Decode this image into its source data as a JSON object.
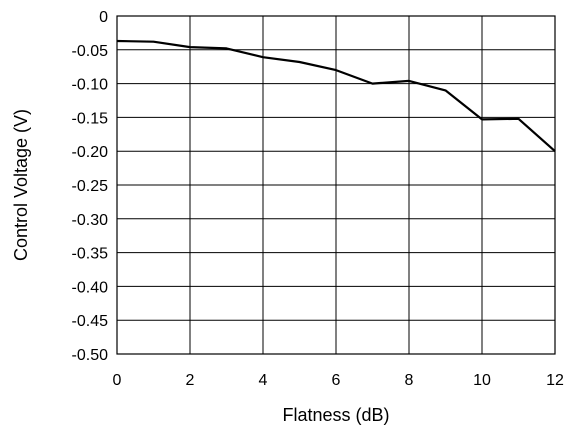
{
  "chart_data": {
    "type": "line",
    "xlabel": "Flatness (dB)",
    "ylabel": "Control Voltage (V)",
    "xlim": [
      0,
      12
    ],
    "ylim": [
      -0.5,
      0
    ],
    "grid": true,
    "x_ticks": [
      0,
      2,
      4,
      6,
      8,
      10,
      12
    ],
    "y_ticks": [
      0,
      -0.05,
      -0.1,
      -0.15,
      -0.2,
      -0.25,
      -0.3,
      -0.35,
      -0.4,
      -0.45,
      -0.5
    ],
    "x_tick_labels": [
      "0",
      "2",
      "4",
      "6",
      "8",
      "10",
      "12"
    ],
    "y_tick_labels": [
      "0",
      "-0.05",
      "-0.10",
      "-0.15",
      "-0.20",
      "-0.25",
      "-0.30",
      "-0.35",
      "-0.40",
      "-0.45",
      "-0.50"
    ],
    "series": [
      {
        "x": [
          0,
          1,
          2,
          3,
          4,
          5,
          6,
          7,
          8,
          9,
          10,
          11,
          12
        ],
        "values": [
          -0.037,
          -0.038,
          -0.046,
          -0.048,
          -0.061,
          -0.068,
          -0.08,
          -0.1,
          -0.096,
          -0.11,
          -0.153,
          -0.152,
          -0.2
        ]
      }
    ]
  }
}
